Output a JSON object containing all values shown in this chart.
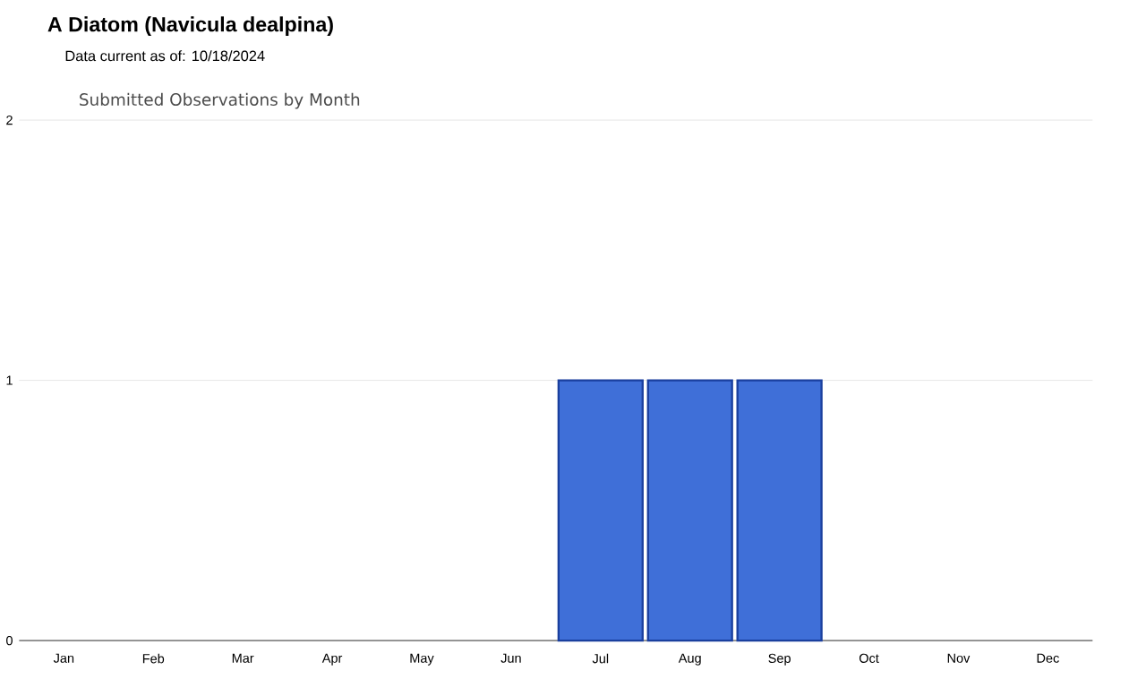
{
  "chart_data": {
    "type": "bar",
    "title": "A Diatom   (Navicula dealpina)",
    "subtitle": "Data current as of: 10/18/2024",
    "annotations": [
      "Submitted Observations by Month"
    ],
    "categories": [
      "Jan",
      "Feb",
      "Mar",
      "Apr",
      "May",
      "Jun",
      "Jul",
      "Aug",
      "Sep",
      "Oct",
      "Nov",
      "Dec"
    ],
    "values": [
      0,
      0,
      0,
      0,
      0,
      0,
      1,
      1,
      1,
      0,
      0,
      0
    ],
    "color": "#3f6fd8",
    "ylim": [
      0,
      2
    ],
    "yticks": [
      0,
      1,
      2
    ],
    "grid": "y"
  }
}
